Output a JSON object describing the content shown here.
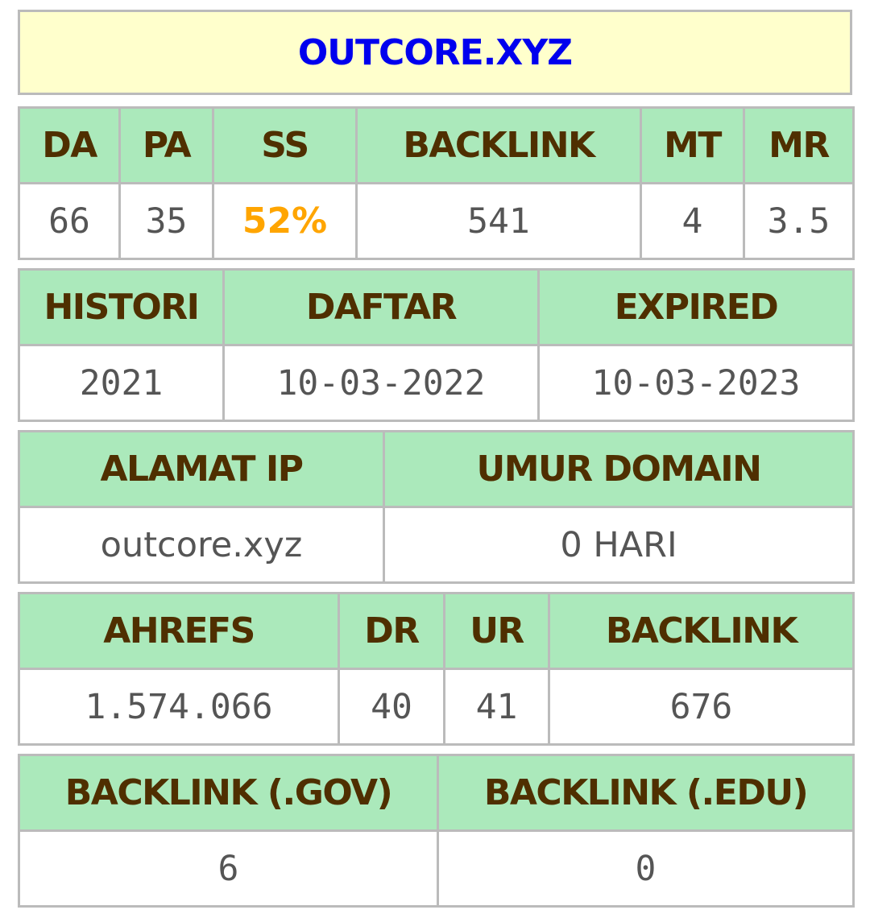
{
  "domain_title": "OUTCORE.XYZ",
  "metrics": {
    "headers": {
      "da": "DA",
      "pa": "PA",
      "ss": "SS",
      "backlink": "BACKLINK",
      "mt": "MT",
      "mr": "MR"
    },
    "values": {
      "da": "66",
      "pa": "35",
      "ss": "52%",
      "backlink": "541",
      "mt": "4",
      "mr": "3.5"
    },
    "ss_color": "#ffa500"
  },
  "dates": {
    "headers": {
      "histori": "HISTORI",
      "daftar": "DAFTAR",
      "expired": "EXPIRED"
    },
    "values": {
      "histori": "2021",
      "daftar": "10-03-2022",
      "expired": "10-03-2023"
    }
  },
  "ip": {
    "headers": {
      "alamat_ip": "ALAMAT IP",
      "umur_domain": "UMUR DOMAIN"
    },
    "values": {
      "alamat_ip": "outcore.xyz",
      "umur_domain": "0 HARI"
    }
  },
  "ahrefs": {
    "headers": {
      "ahrefs": "AHREFS",
      "dr": "DR",
      "ur": "UR",
      "backlink": "BACKLINK"
    },
    "values": {
      "ahrefs": "1.574.066",
      "dr": "40",
      "ur": "41",
      "backlink": "676"
    }
  },
  "special_backlinks": {
    "headers": {
      "gov": "BACKLINK (.GOV)",
      "edu": "BACKLINK (.EDU)"
    },
    "values": {
      "gov": "6",
      "edu": "0"
    }
  },
  "colors": {
    "title_background": "#ffffcc",
    "title_text": "#0000ee",
    "header_background": "#abe9bb",
    "header_text": "#4f2f00",
    "value_text": "#555555",
    "border": "#bbbbbb"
  }
}
